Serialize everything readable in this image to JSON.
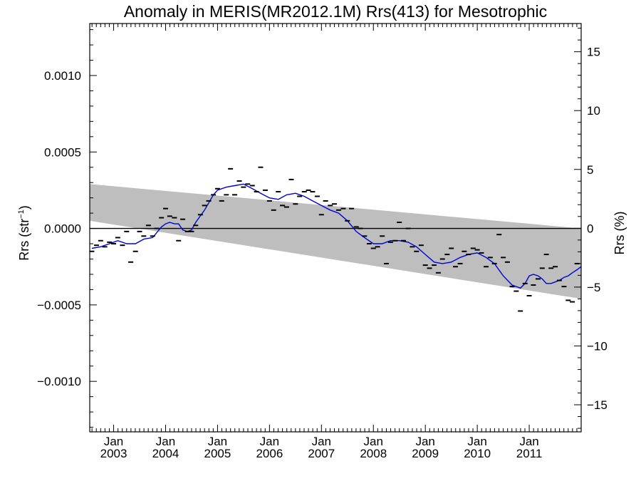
{
  "chart_data": {
    "type": "scatter",
    "title": "Anomaly in MERIS(MR2012.1M) Rrs(413) for Mesotrophic",
    "ylabel_left": {
      "base": "Rrs (str",
      "sup": "−1",
      "close": ")"
    },
    "ylabel_right": "Rrs (%)",
    "xlim": [
      2002.54,
      2012.0
    ],
    "ylim": [
      -0.00133,
      0.00134
    ],
    "ylim_right": [
      -17.3,
      17.4
    ],
    "grid": false,
    "x_ticks": [
      {
        "x": 2003.0,
        "month": "Jan",
        "year": "2003"
      },
      {
        "x": 2004.0,
        "month": "Jan",
        "year": "2004"
      },
      {
        "x": 2005.0,
        "month": "Jan",
        "year": "2005"
      },
      {
        "x": 2006.0,
        "month": "Jan",
        "year": "2006"
      },
      {
        "x": 2007.0,
        "month": "Jan",
        "year": "2007"
      },
      {
        "x": 2008.0,
        "month": "Jan",
        "year": "2008"
      },
      {
        "x": 2009.0,
        "month": "Jan",
        "year": "2009"
      },
      {
        "x": 2010.0,
        "month": "Jan",
        "year": "2010"
      },
      {
        "x": 2011.0,
        "month": "Jan",
        "year": "2011"
      }
    ],
    "y_ticks_left": [
      {
        "v": 0.001,
        "label": "0.0010"
      },
      {
        "v": 0.0005,
        "label": "0.0005"
      },
      {
        "v": 0.0,
        "label": "0.0000"
      },
      {
        "v": -0.0005,
        "label": "−0.0005"
      },
      {
        "v": -0.001,
        "label": "−0.0010"
      }
    ],
    "y_ticks_right": [
      {
        "v": 15,
        "label": "15"
      },
      {
        "v": 10,
        "label": "10"
      },
      {
        "v": 5,
        "label": "5"
      },
      {
        "v": 0,
        "label": "0"
      },
      {
        "v": -5,
        "label": "−5"
      },
      {
        "v": -10,
        "label": "−10"
      },
      {
        "v": -15,
        "label": "−15"
      }
    ],
    "band": {
      "x": [
        2002.54,
        2012.0
      ],
      "upper": [
        0.00029,
        0.0
      ],
      "lower": [
        5e-05,
        -0.00046
      ],
      "color": "#bebebe"
    },
    "zero_line": 0.0,
    "monthly_anomaly": {
      "color": "#000000",
      "x": [
        2002.58,
        2002.67,
        2002.75,
        2002.83,
        2002.92,
        2003.0,
        2003.08,
        2003.17,
        2003.25,
        2003.33,
        2003.42,
        2003.5,
        2003.58,
        2003.67,
        2003.75,
        2003.83,
        2003.92,
        2004.0,
        2004.08,
        2004.17,
        2004.25,
        2004.33,
        2004.42,
        2004.5,
        2004.58,
        2004.67,
        2004.75,
        2004.83,
        2004.92,
        2005.0,
        2005.08,
        2005.17,
        2005.25,
        2005.33,
        2005.42,
        2005.5,
        2005.58,
        2005.67,
        2005.75,
        2005.83,
        2005.92,
        2006.0,
        2006.08,
        2006.17,
        2006.25,
        2006.33,
        2006.42,
        2006.5,
        2006.58,
        2006.67,
        2006.75,
        2006.83,
        2006.92,
        2007.0,
        2007.08,
        2007.17,
        2007.25,
        2007.33,
        2007.42,
        2007.5,
        2007.58,
        2007.67,
        2007.75,
        2007.83,
        2007.92,
        2008.0,
        2008.08,
        2008.17,
        2008.25,
        2008.33,
        2008.42,
        2008.5,
        2008.58,
        2008.67,
        2008.75,
        2008.83,
        2008.92,
        2009.0,
        2009.08,
        2009.17,
        2009.25,
        2009.33,
        2009.42,
        2009.5,
        2009.58,
        2009.67,
        2009.75,
        2009.83,
        2009.92,
        2010.0,
        2010.08,
        2010.17,
        2010.25,
        2010.33,
        2010.42,
        2010.5,
        2010.58,
        2010.67,
        2010.75,
        2010.83,
        2010.92,
        2011.0,
        2011.08,
        2011.17,
        2011.25,
        2011.33,
        2011.42,
        2011.5,
        2011.58,
        2011.67,
        2011.75,
        2011.83,
        2011.92
      ],
      "y": [
        -0.00015,
        -0.00011,
        -8e-05,
        -0.00012,
        -9e-05,
        -0.0001,
        -6e-05,
        -0.00011,
        -2e-05,
        -0.00022,
        -0.00015,
        -2e-05,
        -5e-05,
        2e-05,
        -5e-05,
        0.0,
        7e-05,
        0.00013,
        8e-05,
        7e-05,
        -8e-05,
        6e-05,
        -2e-05,
        -2e-05,
        2e-05,
        9e-05,
        0.00015,
        0.00018,
        0.00022,
        0.00026,
        0.00018,
        0.00022,
        0.00039,
        0.00022,
        0.00031,
        0.00027,
        0.00029,
        0.00028,
        0.00024,
        0.0004,
        0.00025,
        0.00018,
        0.00012,
        0.00024,
        0.00015,
        0.00014,
        0.00032,
        0.00016,
        0.00021,
        0.00024,
        0.00025,
        0.00024,
        0.00021,
        9e-05,
        0.00018,
        0.00015,
        0.00016,
        0.00012,
        0.00013,
        5e-05,
        0.00013,
        1e-05,
        -0.0,
        -5e-05,
        -0.0001,
        -0.00013,
        -0.00012,
        -5e-05,
        -0.00023,
        -9e-05,
        -8e-05,
        4e-05,
        -8e-05,
        0.0,
        -0.00012,
        -0.00015,
        -0.00011,
        -0.00024,
        -0.00026,
        -0.00024,
        -0.00029,
        -0.0002,
        -0.00017,
        -0.00013,
        -0.00025,
        -0.00023,
        -0.00015,
        -0.00017,
        -0.00013,
        -0.00014,
        -0.00016,
        -0.00025,
        -0.00019,
        -0.00023,
        -4e-05,
        -0.00019,
        -0.00022,
        -0.00038,
        -0.00041,
        -0.00054,
        -0.00036,
        -0.00044,
        -0.00037,
        -0.00033,
        -0.00026,
        -0.00017,
        -0.00026,
        -0.00025,
        -0.00034,
        -0.00038,
        -0.00047,
        -0.00048,
        -0.00023
      ]
    },
    "running_mean": {
      "color": "#0000dd",
      "x": [
        2002.58,
        2002.75,
        2002.92,
        2003.08,
        2003.25,
        2003.42,
        2003.58,
        2003.75,
        2003.92,
        2004.0,
        2004.08,
        2004.17,
        2004.25,
        2004.33,
        2004.42,
        2004.5,
        2004.58,
        2004.75,
        2004.92,
        2005.0,
        2005.17,
        2005.33,
        2005.5,
        2005.67,
        2005.83,
        2006.0,
        2006.17,
        2006.33,
        2006.5,
        2006.67,
        2006.83,
        2007.0,
        2007.17,
        2007.33,
        2007.5,
        2007.67,
        2007.83,
        2008.0,
        2008.17,
        2008.33,
        2008.5,
        2008.67,
        2008.83,
        2009.0,
        2009.17,
        2009.33,
        2009.5,
        2009.67,
        2009.83,
        2010.0,
        2010.17,
        2010.33,
        2010.5,
        2010.67,
        2010.83,
        2010.92,
        2011.0,
        2011.08,
        2011.17,
        2011.25,
        2011.33,
        2011.42,
        2011.5,
        2011.58,
        2011.67,
        2011.75,
        2011.83,
        2011.92,
        2012.0
      ],
      "y": [
        -0.00013,
        -0.00012,
        -0.0001,
        -8e-05,
        -0.0001,
        -0.0001,
        -7e-05,
        -6e-05,
        1e-05,
        3e-05,
        4e-05,
        3e-05,
        3e-05,
        -1e-05,
        -2e-05,
        -1e-05,
        4e-05,
        0.00012,
        0.00022,
        0.00025,
        0.00027,
        0.00028,
        0.00029,
        0.00026,
        0.00023,
        0.0002,
        0.00019,
        0.00022,
        0.00023,
        0.00021,
        0.00018,
        0.00015,
        0.00012,
        0.0001,
        5e-05,
        -2e-05,
        -6e-05,
        -0.0001,
        -0.0001,
        -8e-05,
        -8e-05,
        -9e-05,
        -0.00012,
        -0.00017,
        -0.00022,
        -0.00023,
        -0.00022,
        -0.00019,
        -0.00017,
        -0.00016,
        -0.00019,
        -0.00023,
        -0.00031,
        -0.00037,
        -0.00039,
        -0.00036,
        -0.00031,
        -0.0003,
        -0.00031,
        -0.00033,
        -0.00036,
        -0.00036,
        -0.00035,
        -0.00034,
        -0.00032,
        -0.00031,
        -0.00029,
        -0.00027,
        -0.00025
      ]
    }
  }
}
